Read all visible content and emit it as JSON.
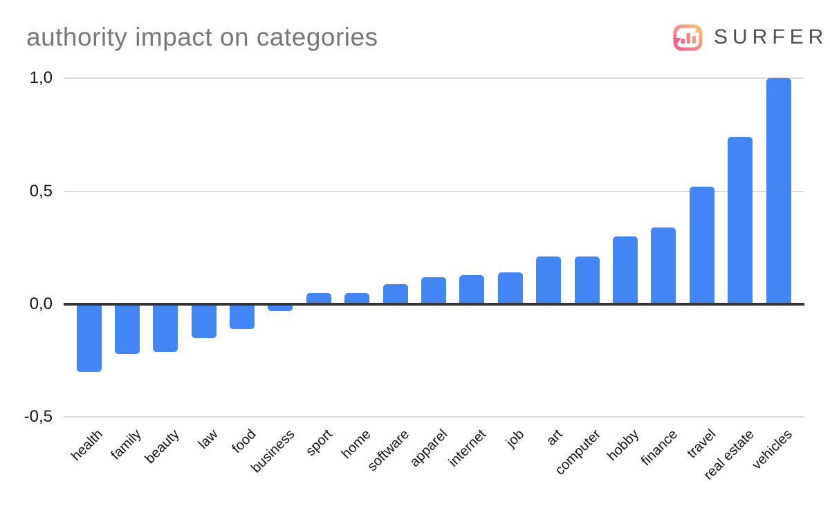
{
  "header": {
    "title": "authority impact on categories",
    "brand": "SURFER"
  },
  "logo": {
    "icon": "surfer-cycle-barchart-icon",
    "gradient_from": "#f9b873",
    "gradient_to": "#ef5f8e",
    "text_color": "#4c4c54"
  },
  "chart_data": {
    "type": "bar",
    "title": "authority impact on categories",
    "xlabel": "",
    "ylabel": "",
    "grid": true,
    "legend_position": "none",
    "bar_color": "#4285f4",
    "axis_color": "#333333",
    "gridline_color": "#d9d9d9",
    "ylim": [
      -0.5,
      1.0
    ],
    "yticks": [
      {
        "value": 1.0,
        "label": "1,0"
      },
      {
        "value": 0.5,
        "label": "0,5"
      },
      {
        "value": 0.0,
        "label": "0,0"
      },
      {
        "value": -0.5,
        "label": "-0,5"
      }
    ],
    "categories": [
      "health",
      "family",
      "beauty",
      "law",
      "food",
      "business",
      "sport",
      "home",
      "software",
      "apparel",
      "internet",
      "job",
      "art",
      "computer",
      "hobby",
      "finance",
      "travel",
      "real estate",
      "vehicles"
    ],
    "values": [
      -0.3,
      -0.22,
      -0.21,
      -0.15,
      -0.11,
      -0.03,
      0.05,
      0.05,
      0.09,
      0.12,
      0.13,
      0.14,
      0.21,
      0.21,
      0.3,
      0.34,
      0.52,
      0.74,
      1.0
    ]
  }
}
